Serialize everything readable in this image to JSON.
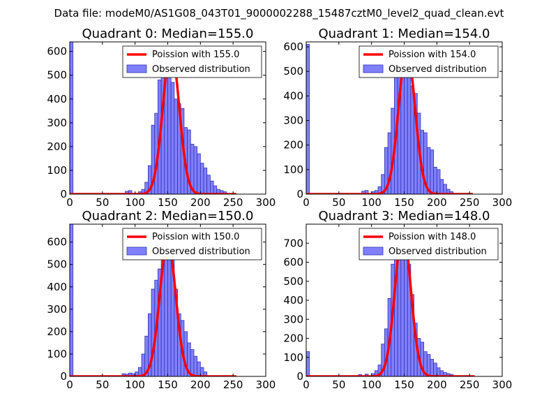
{
  "suptitle": "Data file: modeM0/AS1G08_043T01_9000002288_15487cztM0_level2_quad_clean.evt",
  "colors": {
    "bar_fill": "#8080ff",
    "bar_edge": "#3030b0",
    "poisson_line": "#ff0000",
    "axes": "#000000",
    "background": "#ffffff"
  },
  "chart_data": [
    {
      "type": "bar",
      "title": "Quadrant 0: Median=155.0",
      "median": 155.0,
      "xlim": [
        0,
        300
      ],
      "ylim": [
        0,
        640
      ],
      "xticks": [
        0,
        50,
        100,
        150,
        200,
        250,
        300
      ],
      "yticks": [
        0,
        100,
        200,
        300,
        400,
        500,
        600
      ],
      "bin_width": 5,
      "bins": [
        {
          "x": 0,
          "y": 640
        },
        {
          "x": 85,
          "y": 12
        },
        {
          "x": 90,
          "y": 15
        },
        {
          "x": 105,
          "y": 10
        },
        {
          "x": 110,
          "y": 20
        },
        {
          "x": 115,
          "y": 50
        },
        {
          "x": 120,
          "y": 120
        },
        {
          "x": 125,
          "y": 290
        },
        {
          "x": 130,
          "y": 340
        },
        {
          "x": 135,
          "y": 480
        },
        {
          "x": 140,
          "y": 570
        },
        {
          "x": 145,
          "y": 530
        },
        {
          "x": 150,
          "y": 590
        },
        {
          "x": 155,
          "y": 470
        },
        {
          "x": 160,
          "y": 400
        },
        {
          "x": 165,
          "y": 380
        },
        {
          "x": 170,
          "y": 360
        },
        {
          "x": 175,
          "y": 280
        },
        {
          "x": 180,
          "y": 270
        },
        {
          "x": 185,
          "y": 210
        },
        {
          "x": 190,
          "y": 200
        },
        {
          "x": 195,
          "y": 170
        },
        {
          "x": 200,
          "y": 130
        },
        {
          "x": 205,
          "y": 110
        },
        {
          "x": 210,
          "y": 80
        },
        {
          "x": 215,
          "y": 55
        },
        {
          "x": 220,
          "y": 35
        },
        {
          "x": 225,
          "y": 20
        },
        {
          "x": 230,
          "y": 15
        },
        {
          "x": 235,
          "y": 10
        }
      ],
      "legend": {
        "line_label": "Poission with 155.0",
        "bar_label": "Observed distribution",
        "loc": "upper right"
      },
      "poisson": {
        "mean": 155.0,
        "sigma": 12.45,
        "peak": 610,
        "x_end": 255
      }
    },
    {
      "type": "bar",
      "title": "Quadrant 1: Median=154.0",
      "median": 154.0,
      "xlim": [
        0,
        300
      ],
      "ylim": [
        0,
        620
      ],
      "xticks": [
        0,
        50,
        100,
        150,
        200,
        250,
        300
      ],
      "yticks": [
        0,
        100,
        200,
        300,
        400,
        500,
        600
      ],
      "bin_width": 5,
      "bins": [
        {
          "x": 0,
          "y": 610
        },
        {
          "x": 85,
          "y": 12
        },
        {
          "x": 90,
          "y": 15
        },
        {
          "x": 100,
          "y": 10
        },
        {
          "x": 105,
          "y": 15
        },
        {
          "x": 110,
          "y": 30
        },
        {
          "x": 115,
          "y": 80
        },
        {
          "x": 120,
          "y": 190
        },
        {
          "x": 125,
          "y": 250
        },
        {
          "x": 130,
          "y": 350
        },
        {
          "x": 135,
          "y": 510
        },
        {
          "x": 140,
          "y": 590
        },
        {
          "x": 145,
          "y": 540
        },
        {
          "x": 150,
          "y": 490
        },
        {
          "x": 155,
          "y": 500
        },
        {
          "x": 160,
          "y": 440
        },
        {
          "x": 165,
          "y": 410
        },
        {
          "x": 170,
          "y": 330
        },
        {
          "x": 175,
          "y": 260
        },
        {
          "x": 180,
          "y": 250
        },
        {
          "x": 185,
          "y": 190
        },
        {
          "x": 190,
          "y": 180
        },
        {
          "x": 195,
          "y": 110
        },
        {
          "x": 200,
          "y": 100
        },
        {
          "x": 205,
          "y": 60
        },
        {
          "x": 210,
          "y": 40
        },
        {
          "x": 215,
          "y": 20
        },
        {
          "x": 220,
          "y": 10
        }
      ],
      "legend": {
        "line_label": "Poission with 154.0",
        "bar_label": "Observed distribution",
        "loc": "upper right"
      },
      "poisson": {
        "mean": 154.0,
        "sigma": 12.41,
        "peak": 590,
        "x_end": 255
      }
    },
    {
      "type": "bar",
      "title": "Quadrant 2: Median=150.0",
      "median": 150.0,
      "xlim": [
        0,
        300
      ],
      "ylim": [
        0,
        680
      ],
      "xticks": [
        0,
        50,
        100,
        150,
        200,
        250,
        300
      ],
      "yticks": [
        0,
        100,
        200,
        300,
        400,
        500,
        600
      ],
      "bin_width": 5,
      "bins": [
        {
          "x": 0,
          "y": 680
        },
        {
          "x": 80,
          "y": 12
        },
        {
          "x": 85,
          "y": 10
        },
        {
          "x": 90,
          "y": 15
        },
        {
          "x": 95,
          "y": 12
        },
        {
          "x": 100,
          "y": 20
        },
        {
          "x": 105,
          "y": 40
        },
        {
          "x": 110,
          "y": 100
        },
        {
          "x": 115,
          "y": 180
        },
        {
          "x": 120,
          "y": 280
        },
        {
          "x": 125,
          "y": 390
        },
        {
          "x": 130,
          "y": 430
        },
        {
          "x": 135,
          "y": 480
        },
        {
          "x": 140,
          "y": 570
        },
        {
          "x": 145,
          "y": 610
        },
        {
          "x": 150,
          "y": 610
        },
        {
          "x": 155,
          "y": 590
        },
        {
          "x": 160,
          "y": 390
        },
        {
          "x": 165,
          "y": 280
        },
        {
          "x": 170,
          "y": 250
        },
        {
          "x": 175,
          "y": 200
        },
        {
          "x": 180,
          "y": 150
        },
        {
          "x": 185,
          "y": 120
        },
        {
          "x": 190,
          "y": 90
        },
        {
          "x": 195,
          "y": 65
        },
        {
          "x": 200,
          "y": 40
        },
        {
          "x": 205,
          "y": 20
        }
      ],
      "legend": {
        "line_label": "Poission with 150.0",
        "bar_label": "Observed distribution",
        "loc": "upper right"
      },
      "poisson": {
        "mean": 150.0,
        "sigma": 12.25,
        "peak": 600,
        "x_end": 255
      }
    },
    {
      "type": "bar",
      "title": "Quadrant 3: Median=148.0",
      "median": 148.0,
      "xlim": [
        0,
        300
      ],
      "ylim": [
        0,
        800
      ],
      "xticks": [
        0,
        50,
        100,
        150,
        200,
        250,
        300
      ],
      "yticks": [
        0,
        100,
        200,
        300,
        400,
        500,
        600,
        700
      ],
      "bin_width": 5,
      "bins": [
        {
          "x": 0,
          "y": 130
        },
        {
          "x": 80,
          "y": 10
        },
        {
          "x": 90,
          "y": 12
        },
        {
          "x": 100,
          "y": 15
        },
        {
          "x": 105,
          "y": 30
        },
        {
          "x": 110,
          "y": 60
        },
        {
          "x": 115,
          "y": 170
        },
        {
          "x": 120,
          "y": 250
        },
        {
          "x": 125,
          "y": 410
        },
        {
          "x": 130,
          "y": 590
        },
        {
          "x": 135,
          "y": 620
        },
        {
          "x": 140,
          "y": 750
        },
        {
          "x": 145,
          "y": 760
        },
        {
          "x": 150,
          "y": 760
        },
        {
          "x": 155,
          "y": 590
        },
        {
          "x": 160,
          "y": 430
        },
        {
          "x": 165,
          "y": 280
        },
        {
          "x": 170,
          "y": 200
        },
        {
          "x": 175,
          "y": 180
        },
        {
          "x": 180,
          "y": 130
        },
        {
          "x": 185,
          "y": 115
        },
        {
          "x": 190,
          "y": 90
        },
        {
          "x": 195,
          "y": 70
        },
        {
          "x": 200,
          "y": 45
        },
        {
          "x": 205,
          "y": 30
        },
        {
          "x": 210,
          "y": 20
        },
        {
          "x": 215,
          "y": 15
        },
        {
          "x": 220,
          "y": 10
        }
      ],
      "legend": {
        "line_label": "Poission with 148.0",
        "bar_label": "Observed distribution",
        "loc": "upper right"
      },
      "poisson": {
        "mean": 148.0,
        "sigma": 12.17,
        "peak": 760,
        "x_end": 258
      }
    }
  ]
}
